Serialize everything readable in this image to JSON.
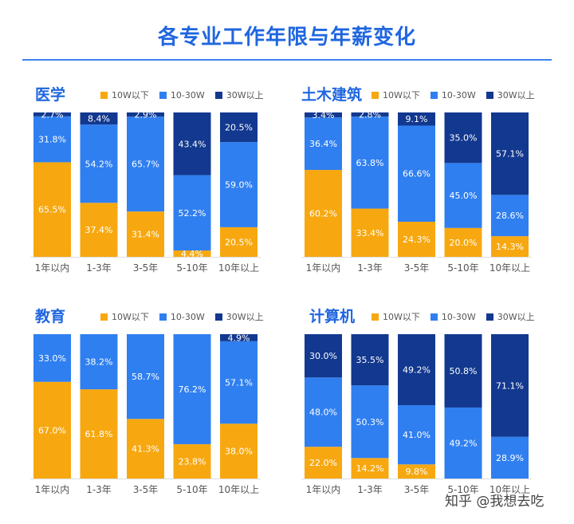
{
  "title": "各专业工作年限与年薪变化",
  "legend": {
    "low": "10W以下",
    "mid": "10-30W",
    "high": "30W以上"
  },
  "colors": {
    "low": "#f7a810",
    "mid": "#2f7ff0",
    "high": "#12388f",
    "title": "#1f66e0"
  },
  "watermark": "知乎 @我想去吃",
  "chart_data": [
    {
      "type": "bar",
      "stacked": true,
      "title": "医学",
      "categories": [
        "1年以内",
        "1-3年",
        "3-5年",
        "5-10年",
        "10年以上"
      ],
      "series": [
        {
          "name": "10W以下",
          "values": [
            65.5,
            37.4,
            31.4,
            4.4,
            20.5
          ]
        },
        {
          "name": "10-30W",
          "values": [
            31.8,
            54.2,
            65.7,
            52.2,
            59.0
          ]
        },
        {
          "name": "30W以上",
          "values": [
            2.7,
            8.4,
            2.9,
            43.4,
            20.5
          ]
        }
      ],
      "labels": {
        "10W以下": [
          "65.5%",
          "37.4%",
          "31.4%",
          "4.4%",
          "20.5%"
        ],
        "10-30W": [
          "31.8%",
          "54.2%",
          "65.7%",
          "52.2%",
          "59.0%"
        ],
        "30W以上": [
          "2.7%",
          "8.4%",
          "2.9%",
          "43.4%",
          "20.5%"
        ]
      },
      "ylim": [
        0,
        100
      ],
      "legend_position": "top"
    },
    {
      "type": "bar",
      "stacked": true,
      "title": "土木建筑",
      "categories": [
        "1年以内",
        "1-3年",
        "3-5年",
        "5-10年",
        "10年以上"
      ],
      "series": [
        {
          "name": "10W以下",
          "values": [
            60.2,
            33.4,
            24.3,
            20.0,
            14.3
          ]
        },
        {
          "name": "10-30W",
          "values": [
            36.4,
            63.8,
            66.6,
            45.0,
            28.6
          ]
        },
        {
          "name": "30W以上",
          "values": [
            3.4,
            2.8,
            9.1,
            35.0,
            57.1
          ]
        }
      ],
      "labels": {
        "10W以下": [
          "60.2%",
          "33.4%",
          "24.3%",
          "20.0%",
          "14.3%"
        ],
        "10-30W": [
          "36.4%",
          "63.8%",
          "66.6%",
          "45.0%",
          "28.6%"
        ],
        "30W以上": [
          "3.4%",
          "2.8%",
          "9.1%",
          "35.0%",
          "57.1%"
        ]
      },
      "ylim": [
        0,
        100
      ],
      "legend_position": "top"
    },
    {
      "type": "bar",
      "stacked": true,
      "title": "教育",
      "categories": [
        "1年以内",
        "1-3年",
        "3-5年",
        "5-10年",
        "10年以上"
      ],
      "series": [
        {
          "name": "10W以下",
          "values": [
            67.0,
            61.8,
            41.3,
            23.8,
            38.0
          ]
        },
        {
          "name": "10-30W",
          "values": [
            33.0,
            38.2,
            58.7,
            76.2,
            57.1
          ]
        },
        {
          "name": "30W以上",
          "values": [
            0,
            0,
            0,
            0,
            4.9
          ]
        }
      ],
      "labels": {
        "10W以下": [
          "67.0%",
          "61.8%",
          "41.3%",
          "23.8%",
          "38.0%"
        ],
        "10-30W": [
          "33.0%",
          "38.2%",
          "58.7%",
          "76.2%",
          "57.1%"
        ],
        "30W以上": [
          "",
          "",
          "",
          "",
          "4.9%"
        ]
      },
      "ylim": [
        0,
        100
      ],
      "legend_position": "top"
    },
    {
      "type": "bar",
      "stacked": true,
      "title": "计算机",
      "categories": [
        "1年以内",
        "1-3年",
        "3-5年",
        "5-10年",
        "10年以上"
      ],
      "series": [
        {
          "name": "10W以下",
          "values": [
            22.0,
            14.2,
            9.8,
            0,
            0
          ]
        },
        {
          "name": "10-30W",
          "values": [
            48.0,
            50.3,
            41.0,
            49.2,
            28.9
          ]
        },
        {
          "name": "30W以上",
          "values": [
            30.0,
            35.5,
            49.2,
            50.8,
            71.1
          ]
        }
      ],
      "labels": {
        "10W以下": [
          "22.0%",
          "14.2%",
          "9.8%",
          "",
          ""
        ],
        "10-30W": [
          "48.0%",
          "50.3%",
          "41.0%",
          "49.2%",
          "28.9%"
        ],
        "30W以上": [
          "30.0%",
          "35.5%",
          "49.2%",
          "50.8%",
          "71.1%"
        ]
      },
      "ylim": [
        0,
        100
      ],
      "legend_position": "top"
    }
  ]
}
